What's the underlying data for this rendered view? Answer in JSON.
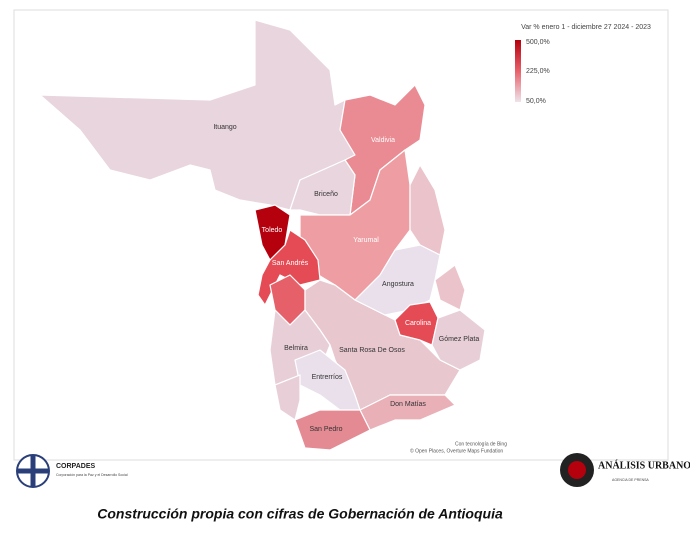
{
  "legend": {
    "title": "Var % enero 1 - diciembre 27 2024 - 2023",
    "labels": [
      "500,0%",
      "225,0%",
      "50,0%"
    ]
  },
  "regions": [
    "Ituango",
    "Valdivia",
    "Briceño",
    "Yarumal",
    "Toledo",
    "San Andrés",
    "Angostura",
    "Carolina",
    "Gómez Plata",
    "Belmira",
    "Santa Rosa De Osos",
    "Entrerríos",
    "Don Matías",
    "San Pedro"
  ],
  "attribution": [
    "Con tecnología de Bing",
    "© Open Places, Overture Maps Fundation"
  ],
  "logos": {
    "left": "CORPADES",
    "left_sub": "Corporación para la Paz y el Desarrollo Social",
    "right": "ANÁLISIS URBANO",
    "right_sub": "AGENCIA DE PRENSA"
  },
  "caption": "Construcción propia con cifras de Gobernación de Antioquia"
}
